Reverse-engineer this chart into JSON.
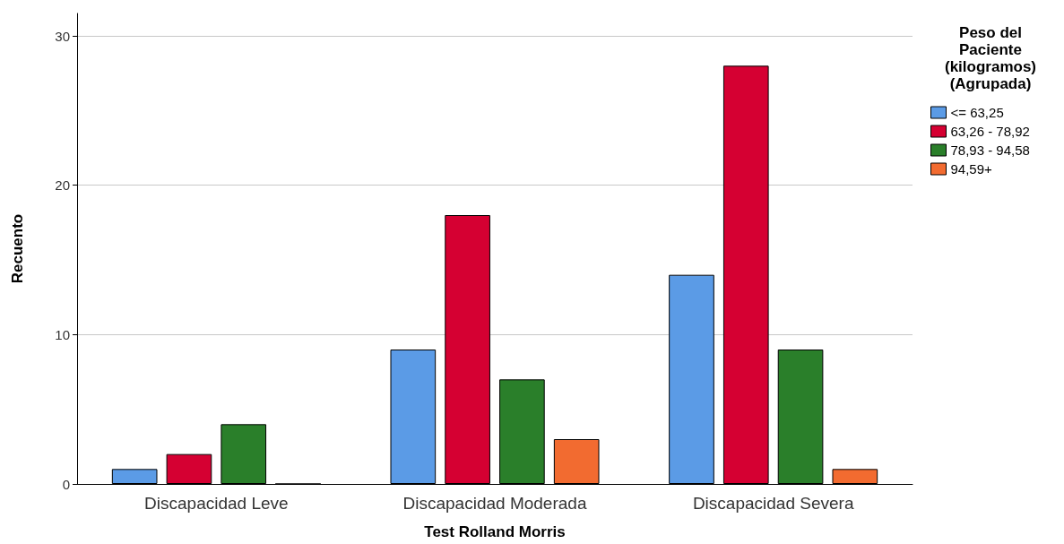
{
  "chart_data": {
    "type": "bar",
    "xlabel": "Test Rolland Morris",
    "ylabel": "Recuento",
    "legend_title": "Peso del\nPaciente\n(kilogramos)\n(Agrupada)",
    "categories": [
      "Discapacidad Leve",
      "Discapacidad Moderada",
      "Discapacidad Severa"
    ],
    "series": [
      {
        "name": "<= 63,25",
        "color": "#5b9be6",
        "values": [
          1,
          9,
          14
        ]
      },
      {
        "name": "63,26 - 78,92",
        "color": "#d50032",
        "values": [
          2,
          18,
          28
        ]
      },
      {
        "name": "78,93 - 94,58",
        "color": "#2a7f2a",
        "values": [
          4,
          7,
          9
        ]
      },
      {
        "name": "94,59+",
        "color": "#f26b30",
        "values": [
          0,
          3,
          1
        ]
      }
    ],
    "ylim": [
      0,
      31.5
    ],
    "yticks": [
      0,
      10,
      20,
      30
    ],
    "grid": "y",
    "legend": "right"
  }
}
